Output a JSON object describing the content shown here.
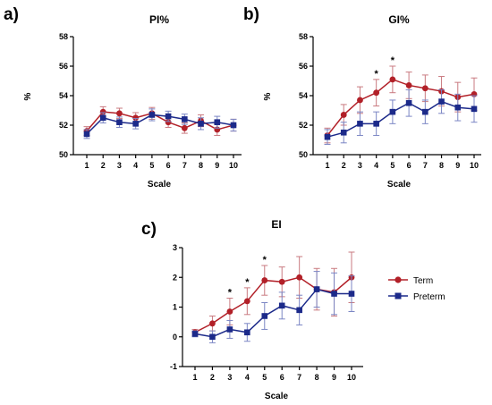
{
  "colors": {
    "term": "#b22028",
    "preterm": "#1c2a8a",
    "term_err": "#c97a80",
    "preterm_err": "#7b86c4"
  },
  "legend": {
    "items": [
      {
        "name": "Term",
        "marker": "circle",
        "color": "#b22028"
      },
      {
        "name": "Preterm",
        "marker": "square",
        "color": "#1c2a8a"
      }
    ]
  },
  "chart_data": [
    {
      "panel": "a)",
      "type": "line",
      "title": "PI%",
      "xlabel": "Scale",
      "ylabel": "%",
      "x": [
        1,
        2,
        3,
        4,
        5,
        6,
        7,
        8,
        9,
        10
      ],
      "ylim": [
        50,
        58
      ],
      "yticks": [
        50,
        52,
        54,
        56,
        58
      ],
      "series": [
        {
          "name": "Term",
          "values": [
            51.6,
            52.9,
            52.8,
            52.5,
            52.8,
            52.2,
            51.8,
            52.3,
            51.7,
            52.0
          ],
          "errors": [
            0.3,
            0.35,
            0.35,
            0.35,
            0.4,
            0.35,
            0.35,
            0.4,
            0.4,
            0.4
          ]
        },
        {
          "name": "Preterm",
          "values": [
            51.4,
            52.5,
            52.2,
            52.1,
            52.7,
            52.6,
            52.4,
            52.1,
            52.2,
            52.0
          ],
          "errors": [
            0.3,
            0.35,
            0.35,
            0.35,
            0.4,
            0.35,
            0.35,
            0.4,
            0.4,
            0.4
          ]
        }
      ],
      "annotations": []
    },
    {
      "panel": "b)",
      "type": "line",
      "title": "GI%",
      "xlabel": "Scale",
      "ylabel": "%",
      "x": [
        1,
        2,
        3,
        4,
        5,
        6,
        7,
        8,
        9,
        10
      ],
      "ylim": [
        50,
        58
      ],
      "yticks": [
        50,
        52,
        54,
        56,
        58
      ],
      "series": [
        {
          "name": "Term",
          "values": [
            51.3,
            52.7,
            53.7,
            54.2,
            55.1,
            54.7,
            54.5,
            54.3,
            53.9,
            54.1
          ],
          "errors": [
            0.5,
            0.7,
            0.9,
            0.9,
            0.9,
            0.9,
            0.9,
            1.0,
            1.0,
            1.1
          ]
        },
        {
          "name": "Preterm",
          "values": [
            51.2,
            51.5,
            52.1,
            52.1,
            52.9,
            53.5,
            52.9,
            53.6,
            53.2,
            53.1
          ],
          "errors": [
            0.5,
            0.7,
            0.8,
            0.8,
            0.8,
            0.9,
            0.8,
            0.8,
            0.9,
            0.9
          ]
        }
      ],
      "annotations": [
        {
          "x": 4,
          "text": "*"
        },
        {
          "x": 5,
          "text": "*"
        }
      ]
    },
    {
      "panel": "c)",
      "type": "line",
      "title": "EI",
      "xlabel": "Scale",
      "ylabel": "",
      "x": [
        1,
        2,
        3,
        4,
        5,
        6,
        7,
        8,
        9,
        10
      ],
      "ylim": [
        -1,
        3
      ],
      "yticks": [
        -1,
        0,
        1,
        2,
        3
      ],
      "series": [
        {
          "name": "Term",
          "values": [
            0.15,
            0.45,
            0.85,
            1.2,
            1.9,
            1.85,
            2.0,
            1.6,
            1.5,
            2.0
          ],
          "errors": [
            0.1,
            0.25,
            0.45,
            0.45,
            0.5,
            0.5,
            0.7,
            0.7,
            0.8,
            0.85
          ]
        },
        {
          "name": "Preterm",
          "values": [
            0.1,
            0.0,
            0.25,
            0.15,
            0.7,
            1.05,
            0.9,
            1.6,
            1.45,
            1.45
          ],
          "errors": [
            0.1,
            0.2,
            0.3,
            0.3,
            0.45,
            0.45,
            0.5,
            0.6,
            0.7,
            0.6
          ]
        }
      ],
      "annotations": [
        {
          "x": 3,
          "text": "*"
        },
        {
          "x": 4,
          "text": "*"
        },
        {
          "x": 5,
          "text": "*"
        }
      ]
    }
  ]
}
